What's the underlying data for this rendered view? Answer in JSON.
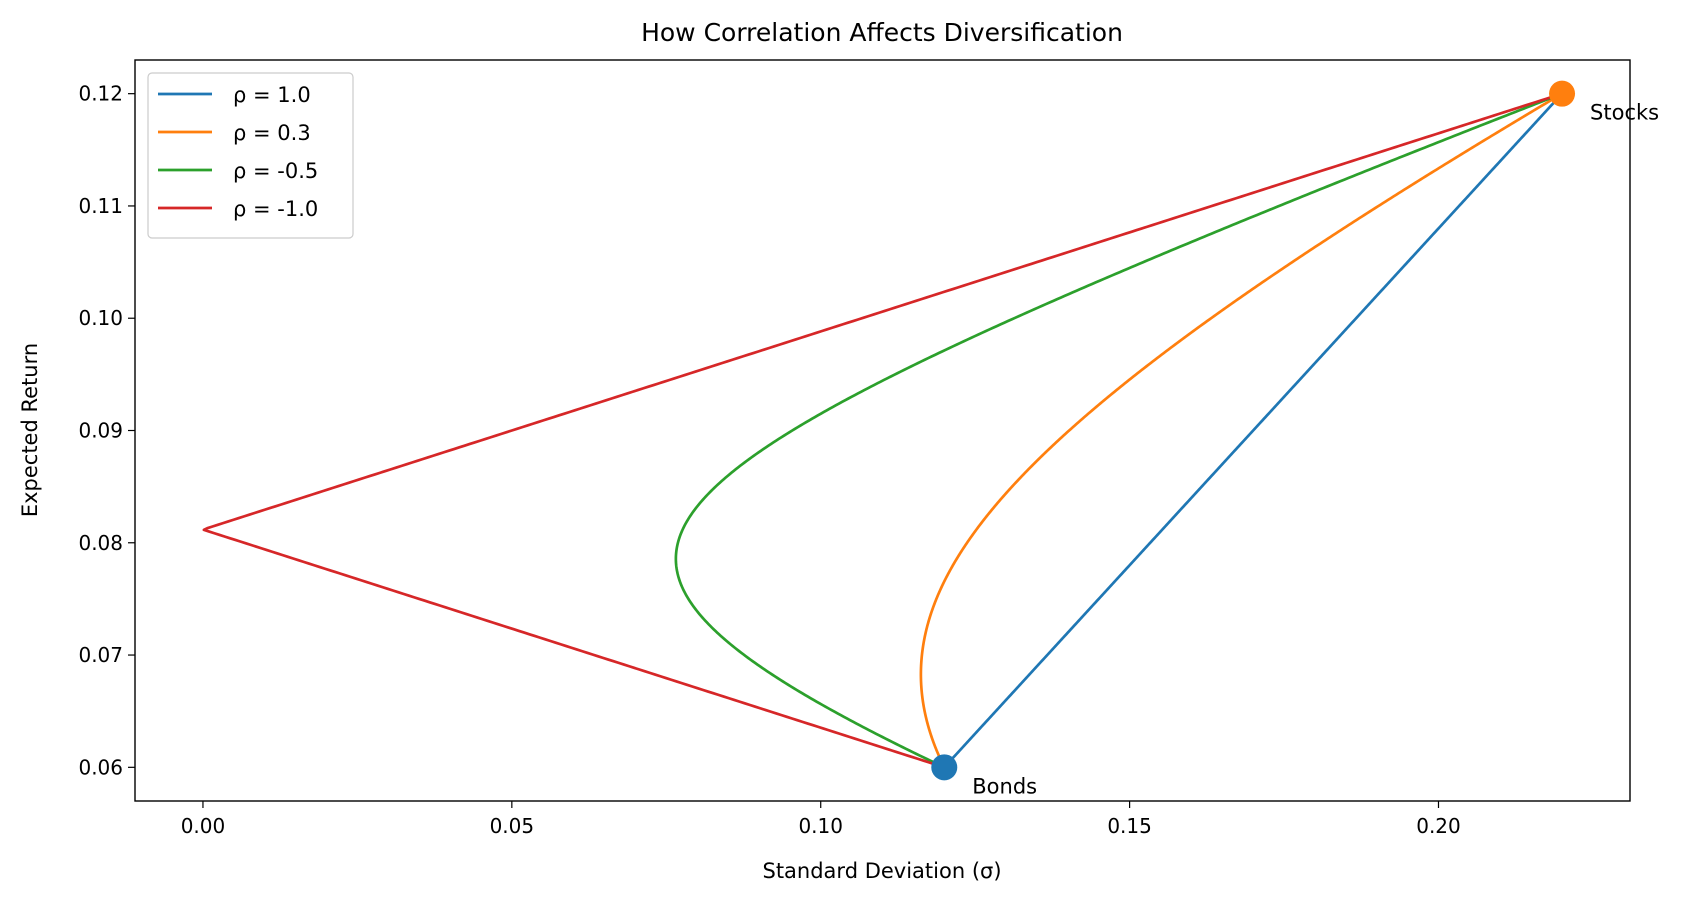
{
  "chart_data": {
    "type": "line",
    "title": "How Correlation Affects Diversification",
    "xlabel": "Standard Deviation (σ)",
    "ylabel": "Expected Return",
    "xlim": [
      -0.011,
      0.231
    ],
    "ylim": [
      0.057,
      0.123
    ],
    "xticks": [
      "0.00",
      "0.05",
      "0.10",
      "0.15",
      "0.20"
    ],
    "yticks": [
      "0.06",
      "0.07",
      "0.08",
      "0.09",
      "0.10",
      "0.11",
      "0.12"
    ],
    "grid": false,
    "legend_position": "top-left",
    "assets": [
      {
        "name": "Bonds",
        "std": 0.12,
        "return": 0.06,
        "color": "#1f77b4"
      },
      {
        "name": "Stocks",
        "std": 0.22,
        "return": 0.12,
        "color": "#ff7f0e"
      }
    ],
    "series": [
      {
        "name": "ρ = 1.0",
        "rho": 1.0,
        "color": "#1f77b4"
      },
      {
        "name": "ρ = 0.3",
        "rho": 0.3,
        "color": "#ff7f0e"
      },
      {
        "name": "ρ = -0.5",
        "rho": -0.5,
        "color": "#2ca02c"
      },
      {
        "name": "ρ = -1.0",
        "rho": -1.0,
        "color": "#d62728"
      }
    ]
  }
}
